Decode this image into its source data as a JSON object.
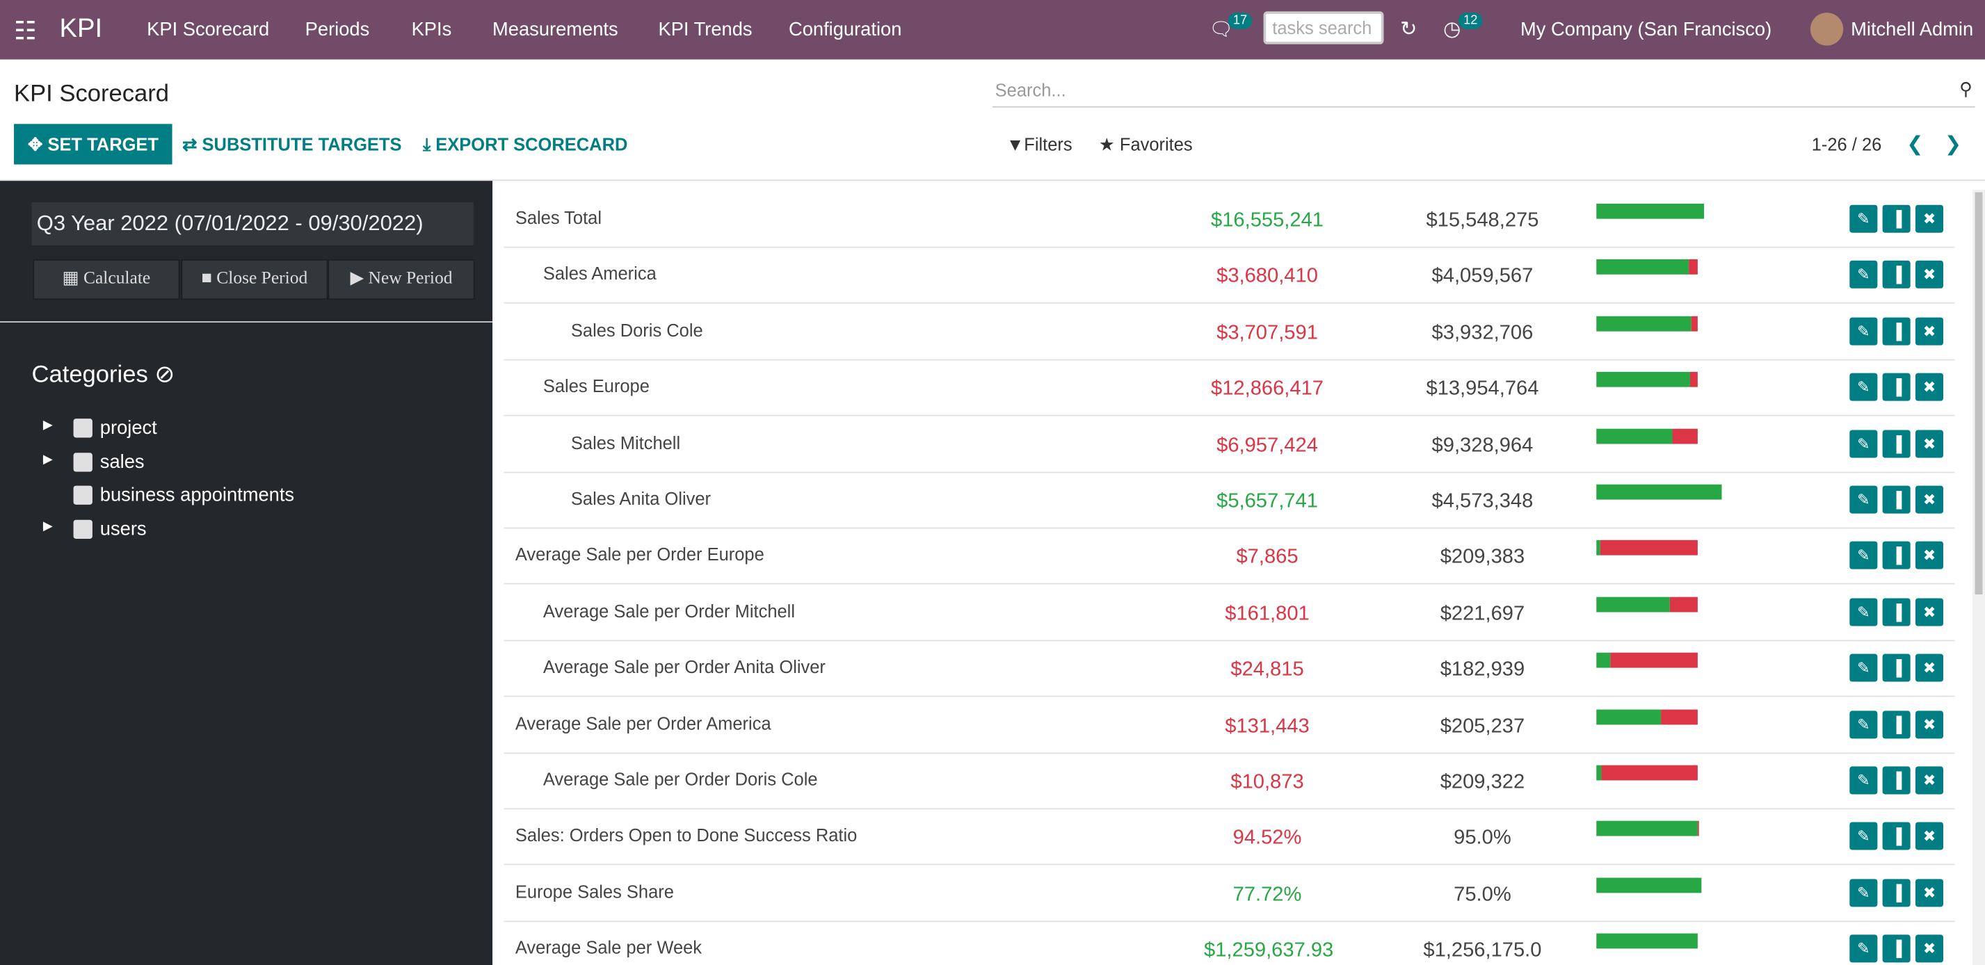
{
  "navbar": {
    "app": "KPI",
    "menu": [
      "KPI Scorecard",
      "Periods",
      "KPIs",
      "Measurements",
      "KPI Trends",
      "Configuration"
    ],
    "messages_count": "17",
    "tasks_search_placeholder": "tasks search",
    "activities_count": "12",
    "company": "My Company (San Francisco)",
    "user": "Mitchell Admin"
  },
  "control_panel": {
    "breadcrumb": "KPI Scorecard",
    "buttons": [
      "SET TARGET",
      "SUBSTITUTE TARGETS",
      "EXPORT SCORECARD"
    ],
    "search_placeholder": "Search...",
    "filters": "Filters",
    "favorites": "Favorites",
    "pager": "1-26 / 26"
  },
  "sidebar": {
    "period": "Q3 Year 2022 (07/01/2022 - 09/30/2022)",
    "period_buttons": [
      "Calculate",
      "Close Period",
      "New Period"
    ],
    "categories_title": "Categories",
    "categories": [
      "project",
      "sales",
      "business appointments",
      "users"
    ]
  },
  "rows": [
    {
      "name": "Sales Total",
      "actual": "$16,555,241",
      "target": "$15,548,275",
      "children": [
        {
          "name": "Sales America",
          "actual": "$3,680,410",
          "target": "$4,059,567",
          "children": [
            {
              "name": "Sales Doris Cole",
              "actual": "$3,707,591",
              "target": "$3,932,706"
            }
          ]
        },
        {
          "name": "Sales Europe",
          "actual": "$12,866,417",
          "target": "$13,954,764",
          "children": [
            {
              "name": "Sales Mitchell",
              "actual": "$6,957,424",
              "target": "$9,328,964"
            },
            {
              "name": "Sales Anita Oliver",
              "actual": "$5,657,741",
              "target": "$4,573,348"
            }
          ]
        }
      ]
    },
    {
      "name": "Average Sale per Order Europe",
      "actual": "$7,865",
      "target": "$209,383",
      "children": [
        {
          "name": "Average Sale per Order Mitchell",
          "actual": "$161,801",
          "target": "$221,697"
        },
        {
          "name": "Average Sale per Order Anita Oliver",
          "actual": "$24,815",
          "target": "$182,939"
        }
      ]
    },
    {
      "name": "Average Sale per Order America",
      "actual": "$131,443",
      "target": "$205,237",
      "children": [
        {
          "name": "Average Sale per Order Doris Cole",
          "actual": "$10,873",
          "target": "$209,322"
        }
      ]
    },
    {
      "name": "Sales: Orders Open to Done Success Ratio",
      "actual": "94.52%",
      "target": "95.0%"
    },
    {
      "name": "Europe Sales Share",
      "actual": "77.72%",
      "target": "75.0%"
    },
    {
      "name": "Average Sale per Week",
      "actual": "$1,259,637.93",
      "target": "$1,256,175.0"
    }
  ]
}
